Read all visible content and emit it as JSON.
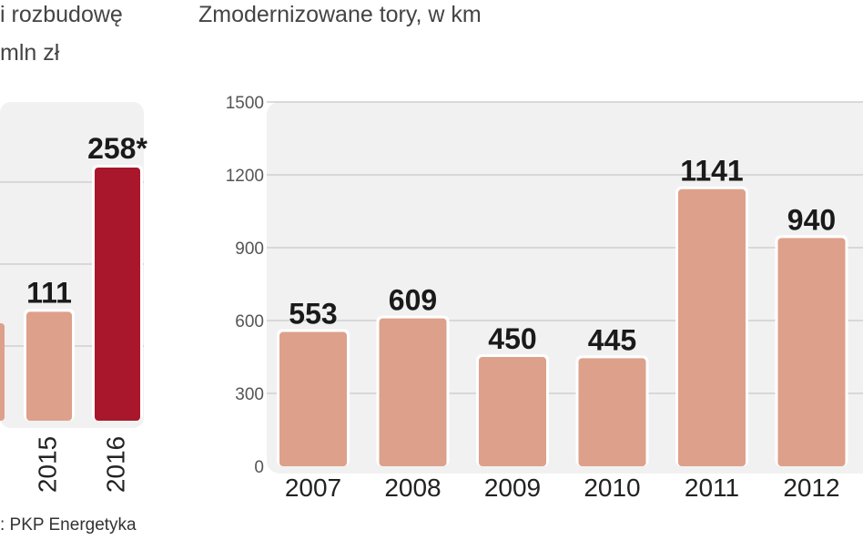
{
  "left_chart": {
    "caption_line1": "i rozbudowę",
    "caption_line2": "mln zł",
    "source": ": PKP Energetyka",
    "chart_data": {
      "type": "bar",
      "categories": [
        "2015",
        "2016"
      ],
      "values": [
        111,
        258
      ],
      "labels": [
        "111",
        "258*"
      ],
      "colors": [
        "#dda08a",
        "#a8172b"
      ]
    }
  },
  "right_chart": {
    "caption": "Zmodernizowane tory, w km",
    "chart_data": {
      "type": "bar",
      "categories": [
        "2007",
        "2008",
        "2009",
        "2010",
        "2011",
        "2012"
      ],
      "values": [
        553,
        609,
        450,
        445,
        1141,
        940
      ],
      "yticks": [
        0,
        300,
        600,
        900,
        1200,
        1500
      ],
      "ylim": [
        0,
        1500
      ],
      "grid": true,
      "bar_color": "#dda08a"
    }
  }
}
